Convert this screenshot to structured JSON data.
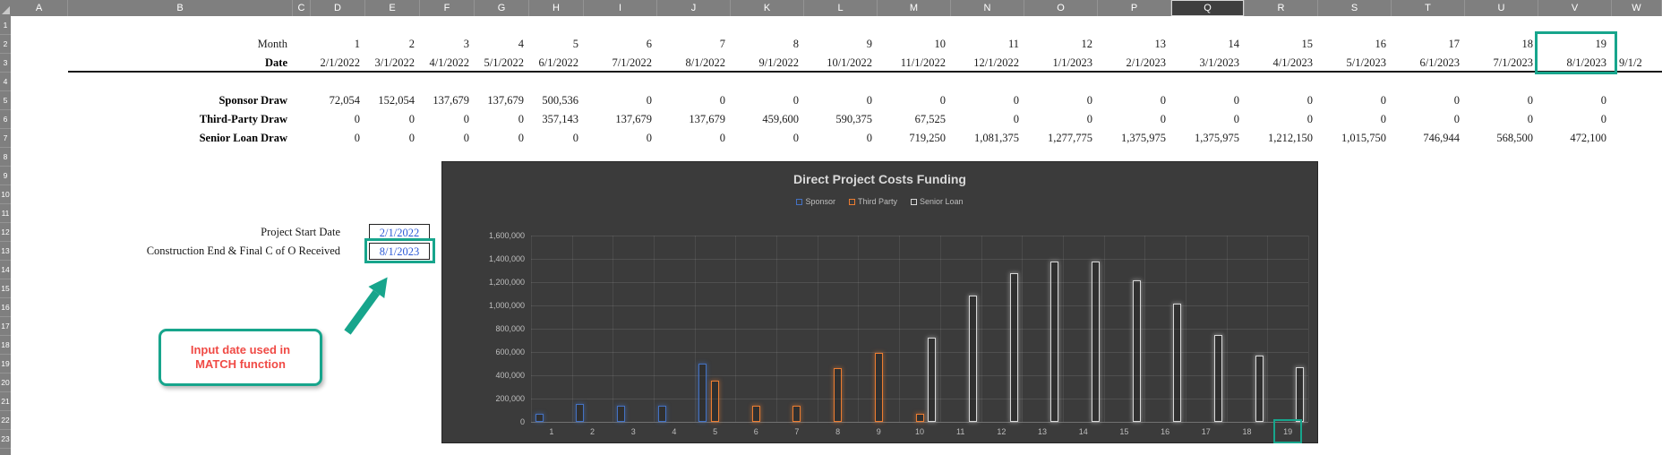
{
  "sheet": {
    "column_letters": [
      "A",
      "B",
      "C",
      "D",
      "E",
      "F",
      "G",
      "H",
      "I",
      "J",
      "K",
      "L",
      "M",
      "N",
      "O",
      "P",
      "Q",
      "R",
      "S",
      "T",
      "U",
      "V",
      "W"
    ],
    "selected_column_header": "Q",
    "visible_rows": 23,
    "header_labels": {
      "month": "Month",
      "date": "Date"
    },
    "months": [
      "1",
      "2",
      "3",
      "4",
      "5",
      "6",
      "7",
      "8",
      "9",
      "10",
      "11",
      "12",
      "13",
      "14",
      "15",
      "16",
      "17",
      "18",
      "19"
    ],
    "dates": [
      "2/1/2022",
      "3/1/2022",
      "4/1/2022",
      "5/1/2022",
      "6/1/2022",
      "7/1/2022",
      "8/1/2022",
      "9/1/2022",
      "10/1/2022",
      "11/1/2022",
      "12/1/2022",
      "1/1/2023",
      "2/1/2023",
      "3/1/2023",
      "4/1/2023",
      "5/1/2023",
      "6/1/2023",
      "7/1/2023",
      "8/1/2023"
    ],
    "date_partial_next": "9/1/2",
    "data_rows": [
      {
        "label": "Sponsor Draw",
        "values": [
          "72,054",
          "152,054",
          "137,679",
          "137,679",
          "500,536",
          "0",
          "0",
          "0",
          "0",
          "0",
          "0",
          "0",
          "0",
          "0",
          "0",
          "0",
          "0",
          "0",
          "0"
        ]
      },
      {
        "label": "Third-Party Draw",
        "values": [
          "0",
          "0",
          "0",
          "0",
          "357,143",
          "137,679",
          "137,679",
          "459,600",
          "590,375",
          "67,525",
          "0",
          "0",
          "0",
          "0",
          "0",
          "0",
          "0",
          "0",
          "0"
        ]
      },
      {
        "label": "Senior Loan Draw",
        "values": [
          "0",
          "0",
          "0",
          "0",
          "0",
          "0",
          "0",
          "0",
          "0",
          "719,250",
          "1,081,375",
          "1,277,775",
          "1,375,975",
          "1,375,975",
          "1,212,150",
          "1,015,750",
          "746,944",
          "568,500",
          "472,100"
        ]
      }
    ]
  },
  "inputs": {
    "project_start": {
      "label": "Project Start Date",
      "value": "2/1/2022"
    },
    "construction_end": {
      "label": "Construction End & Final C of O Received",
      "value": "8/1/2023"
    }
  },
  "callout": {
    "line1": "Input date used in",
    "line2": "MATCH function"
  },
  "highlights": {
    "highlighted_month": "19",
    "highlighted_date": "8/1/2023"
  },
  "chart_data": {
    "type": "bar",
    "title": "Direct Project Costs Funding",
    "categories": [
      1,
      2,
      3,
      4,
      5,
      6,
      7,
      8,
      9,
      10,
      11,
      12,
      13,
      14,
      15,
      16,
      17,
      18,
      19
    ],
    "series": [
      {
        "name": "Sponsor",
        "color": "#4472C4",
        "values": [
          72054,
          152054,
          137679,
          137679,
          500536,
          0,
          0,
          0,
          0,
          0,
          0,
          0,
          0,
          0,
          0,
          0,
          0,
          0,
          0
        ]
      },
      {
        "name": "Third Party",
        "color": "#ED7D31",
        "values": [
          0,
          0,
          0,
          0,
          357143,
          137679,
          137679,
          459600,
          590375,
          67525,
          0,
          0,
          0,
          0,
          0,
          0,
          0,
          0,
          0
        ]
      },
      {
        "name": "Senior Loan",
        "color": "#D9D9D9",
        "values": [
          0,
          0,
          0,
          0,
          0,
          0,
          0,
          0,
          0,
          719250,
          1081375,
          1277775,
          1375975,
          1375975,
          1212150,
          1015750,
          746944,
          568500,
          472100
        ]
      }
    ],
    "ylim": [
      0,
      1600000
    ],
    "ytick_step": 200000,
    "grid": true,
    "legend_position": "top",
    "highlighted_category": 19
  },
  "colors": {
    "accent_teal": "#17A58C",
    "callout_text": "#F04A45",
    "input_value_text": "#2E5BD7",
    "header_gray": "#7F7F7F",
    "chart_bg": "#3B3B3B",
    "chart_text": "#BFBFBF",
    "chart_title_text": "#D9D9D9"
  }
}
